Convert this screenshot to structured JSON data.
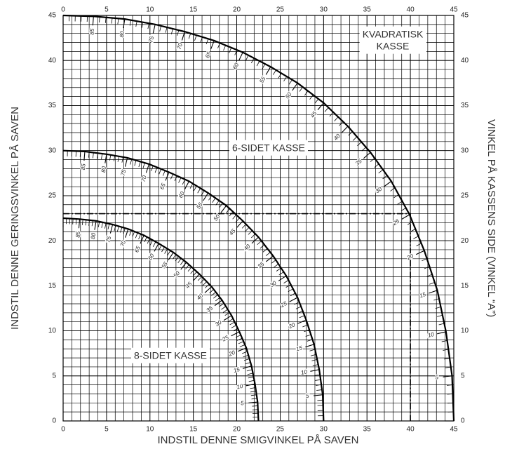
{
  "chart_data": {
    "type": "line",
    "xlabel": "INDSTIL DENNE SMIGVINKEL PÅ SAVEN",
    "ylabel": "INDSTIL DENNE GERINGSVINKEL PÅ SAVEN",
    "y2label": "VINKEL PÅ KASSENS SIDE (VINKEL “A”)",
    "xlim": [
      0,
      45
    ],
    "ylim": [
      0,
      45
    ],
    "xticks": [
      0,
      5,
      10,
      15,
      20,
      25,
      30,
      35,
      40,
      45
    ],
    "yticks": [
      0,
      5,
      10,
      15,
      20,
      25,
      30,
      35,
      40,
      45
    ],
    "grid": true,
    "minor_grid": 1,
    "reference": {
      "x": 40,
      "y": 23
    },
    "series": [
      {
        "label": [
          "KVADRATISK",
          "KASSE"
        ],
        "color": "#000000",
        "angles": [
          null,
          5,
          10,
          15,
          20,
          25,
          30,
          35,
          40,
          45,
          50,
          55,
          60,
          65,
          70,
          75,
          80,
          85,
          null
        ],
        "x": [
          45,
          44.8,
          44.1,
          43.1,
          41.6,
          39.9,
          37.8,
          35.4,
          32.8,
          30,
          27.0,
          23.9,
          20.7,
          17.4,
          14.0,
          10.6,
          7.1,
          3.5,
          0
        ],
        "y": [
          0,
          5.0,
          9.9,
          14.5,
          18.9,
          22.9,
          26.6,
          29.8,
          32.7,
          35.3,
          37.5,
          39.3,
          40.9,
          42.2,
          43.2,
          44.0,
          44.6,
          44.9,
          45
        ]
      },
      {
        "label": [
          "6-SIDET KASSE"
        ],
        "color": "#000000",
        "angles": [
          null,
          5,
          10,
          15,
          20,
          25,
          30,
          35,
          40,
          45,
          50,
          55,
          60,
          65,
          70,
          75,
          80,
          85,
          null
        ],
        "x": [
          30,
          29.9,
          29.5,
          28.9,
          28.0,
          27.0,
          25.7,
          24.2,
          22.5,
          20.7,
          18.8,
          16.7,
          14.5,
          12.2,
          9.9,
          7.4,
          5.0,
          2.5,
          0
        ],
        "y": [
          0,
          2.9,
          5.7,
          8.5,
          11.2,
          13.7,
          16.1,
          18.3,
          20.4,
          22.2,
          23.9,
          25.3,
          26.6,
          27.6,
          28.5,
          29.2,
          29.6,
          29.9,
          30
        ]
      },
      {
        "label": [
          "8-SIDET KASSE"
        ],
        "color": "#000000",
        "angles": [
          null,
          5,
          10,
          15,
          20,
          25,
          30,
          35,
          40,
          45,
          50,
          55,
          60,
          65,
          70,
          75,
          80,
          85,
          null
        ],
        "x": [
          22.5,
          22.4,
          22.1,
          21.7,
          21.1,
          20.3,
          19.4,
          18.3,
          17.1,
          15.7,
          14.2,
          12.7,
          11.0,
          9.3,
          7.5,
          5.7,
          3.8,
          1.9,
          0
        ],
        "y": [
          0,
          2.1,
          4.1,
          6.1,
          8.1,
          9.9,
          11.7,
          13.4,
          14.9,
          16.3,
          17.6,
          18.7,
          19.7,
          20.6,
          21.3,
          21.8,
          22.2,
          22.4,
          22.5
        ]
      }
    ]
  }
}
